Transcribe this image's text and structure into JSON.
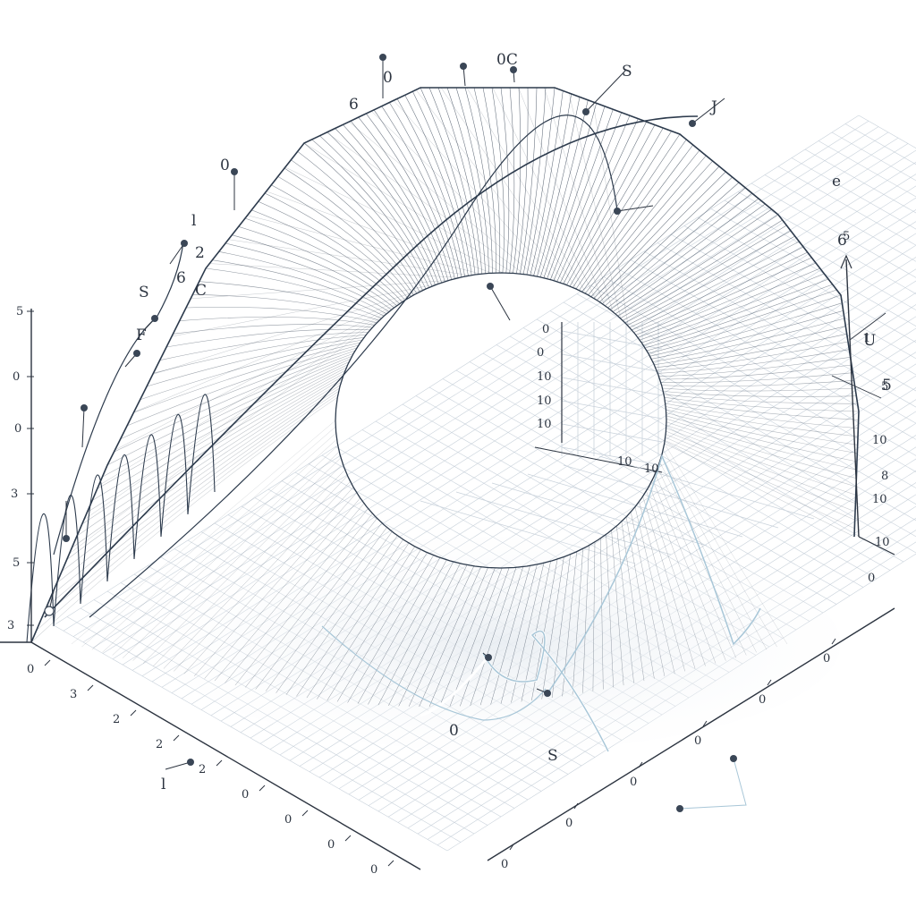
{
  "chart_data": {
    "type": "surface",
    "title": "",
    "xlabel": "",
    "ylabel": "",
    "zlabel": "",
    "grid": true,
    "colors": {
      "surface_dark": "#3d4f66",
      "surface_light": "#c9d2dc",
      "wire": "#2d3b4d",
      "grid": "#c9d2db",
      "axis": "#2c3440",
      "marker": "#3a4656",
      "marker_highlight": "#a9c7d8",
      "label": "#2c3440"
    },
    "left_axis_labels": [
      "5",
      "0",
      "0",
      "3",
      "5",
      "3"
    ],
    "front_axis_labels": [
      "0",
      "3",
      "2",
      "2",
      "2",
      "0",
      "0",
      "0",
      "0"
    ],
    "right_axis_labels": [
      "5",
      "1",
      "5",
      "10",
      "8",
      "10",
      "10",
      "0"
    ],
    "back_axis_labels": [
      "0",
      "0",
      "10",
      "10",
      "10",
      "10",
      "10"
    ],
    "depth_axis_labels": [
      "0",
      "0",
      "0",
      "0",
      "0",
      "0"
    ],
    "annotations": [
      "0",
      "6",
      "0C",
      "S",
      "J",
      "0",
      "l",
      "2",
      "6",
      "C",
      "S",
      "F",
      "e",
      "6",
      "U",
      "5",
      "0",
      "S",
      "l"
    ]
  }
}
